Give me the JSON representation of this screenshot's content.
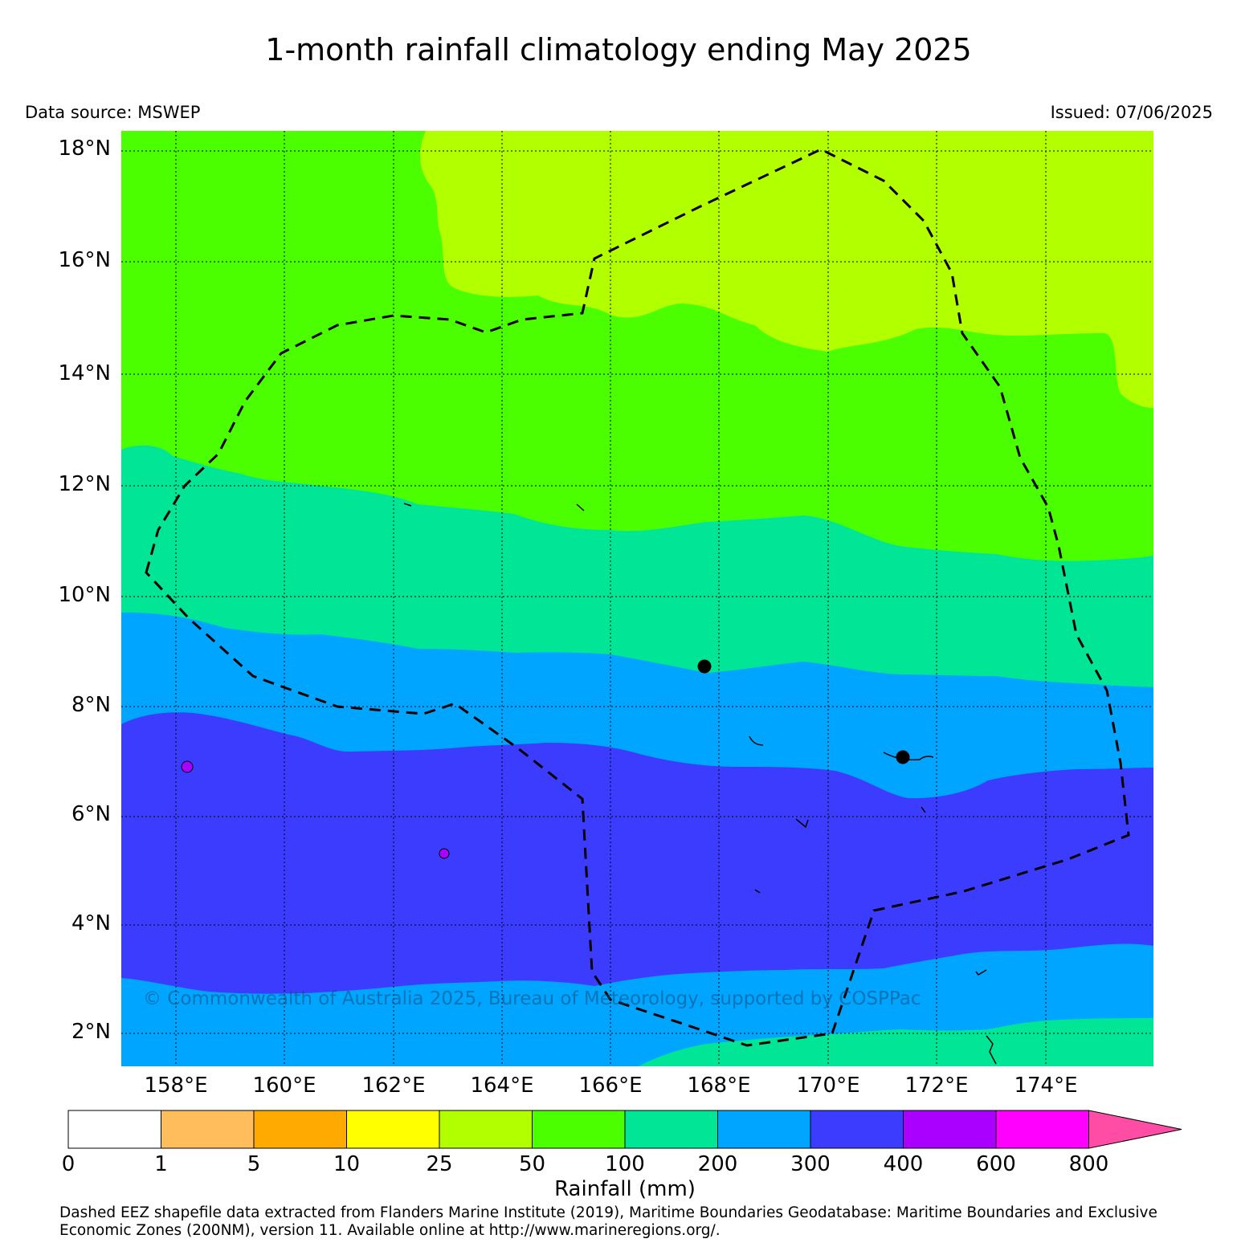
{
  "title": "1-month rainfall climatology ending May 2025",
  "data_source": "Data source: MSWEP",
  "issued": "Issued: 07/06/2025",
  "watermark": "© Commonwealth of Australia 2025, Bureau of Meteorology, supported by COSPPac",
  "lat_labels": [
    "18°N",
    "16°N",
    "14°N",
    "12°N",
    "10°N",
    "8°N",
    "6°N",
    "4°N",
    "2°N"
  ],
  "lon_labels": [
    "158°E",
    "160°E",
    "162°E",
    "164°E",
    "166°E",
    "168°E",
    "170°E",
    "172°E",
    "174°E"
  ],
  "colorbar": {
    "title": "Rainfall (mm)",
    "ticks": [
      "0",
      "1",
      "5",
      "10",
      "25",
      "50",
      "100",
      "200",
      "300",
      "400",
      "600",
      "800"
    ],
    "colors": [
      "#ffffff",
      "#ffbd5c",
      "#ffaa00",
      "#ffff00",
      "#b2ff00",
      "#4cff00",
      "#00e596",
      "#00a5ff",
      "#3c3cff",
      "#a900ff",
      "#ff00ff",
      "#ff4da6"
    ],
    "extend": "max"
  },
  "credit": "Dashed EEZ shapefile data extracted from Flanders Marine Institute (2019), Maritime Boundaries Geodatabase: Maritime Boundaries and Exclusive Economic Zones (200NM), version 11. Available online at http://www.marineregions.org/.",
  "map": {
    "extent": {
      "lon": [
        157.0,
        176.0
      ],
      "lat": [
        1.4,
        18.3
      ]
    },
    "zones_mm": [
      "25-50 (north-east)",
      "50-100",
      "100-200",
      "200-300",
      "300-400",
      "200-300 (south)",
      "100-200 (south-east)"
    ],
    "islands": [
      {
        "lat": 8.72,
        "lon": 167.73
      },
      {
        "lat": 7.09,
        "lon": 171.38
      }
    ]
  }
}
